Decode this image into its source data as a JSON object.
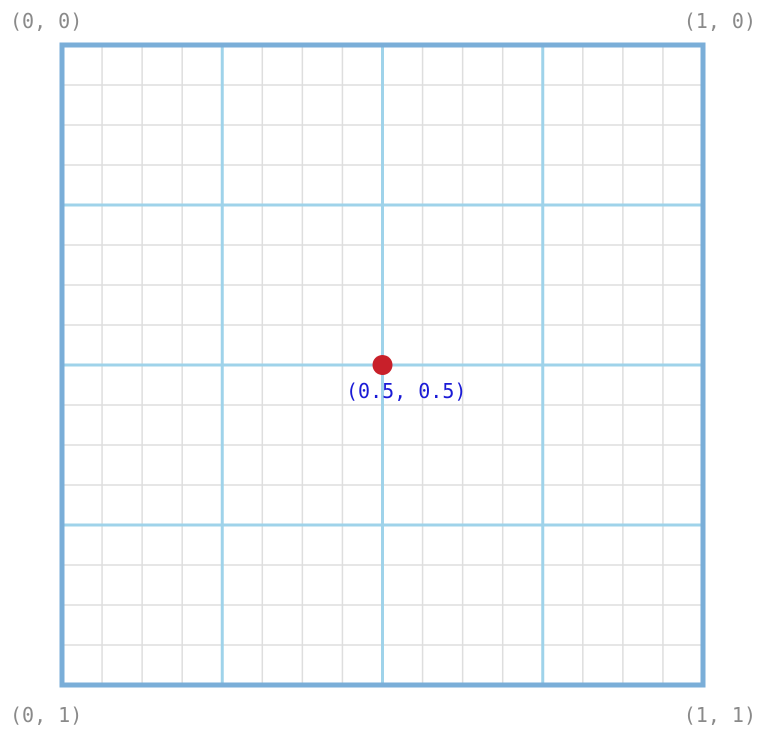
{
  "corners": {
    "top_left": "(0, 0)",
    "top_right": "(1, 0)",
    "bottom_left": "(0, 1)",
    "bottom_right": "(1, 1)"
  },
  "marker": {
    "label": "(0.5, 0.5)",
    "x": 0.5,
    "y": 0.5,
    "color": "#c8202a"
  },
  "grid": {
    "major_divisions": 4,
    "minor_per_major": 4,
    "major_color": "#9fd3ea",
    "minor_color": "#dedede",
    "border_color": "#7aaed8"
  }
}
